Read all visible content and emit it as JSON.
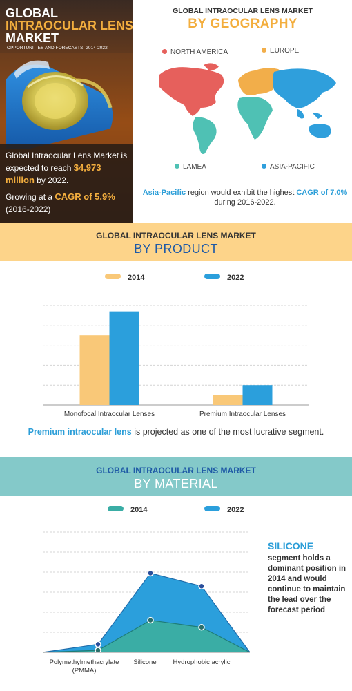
{
  "hero": {
    "title_line1": "GLOBAL",
    "title_line2": "INTRAOCULAR LENS",
    "title_line3": "MARKET",
    "subtitle": "OPPORTUNITIES AND FORECASTS, 2014-2022",
    "stat1_pre": "Global Intraocular Lens Market is expected to reach ",
    "stat1_value": "$4,973 million",
    "stat1_post": " by 2022.",
    "stat2_pre": "Growing at a ",
    "stat2_value": "CAGR of 5.9%",
    "stat2_post": " (2016-2022)",
    "colors": {
      "accent": "#f3ae3e"
    }
  },
  "geography": {
    "kicker": "GLOBAL INTRAOCULAR LENS MARKET",
    "title": "BY GEOGRAPHY",
    "regions": [
      {
        "label": "NORTH AMERICA",
        "color": "#e6605c"
      },
      {
        "label": "EUROPE",
        "color": "#f2ae4a"
      },
      {
        "label": "LAMEA",
        "color": "#4fc1b4"
      },
      {
        "label": "ASIA-PACIFIC",
        "color": "#2f9fdc"
      }
    ],
    "note_b1": "Asia-Pacific",
    "note_mid": " region would exhibit the highest ",
    "note_b2": "CAGR of 7.0%",
    "note_end": " during 2016-2022."
  },
  "product": {
    "kicker": "GLOBAL INTRAOCULAR LENS MARKET",
    "title": "BY PRODUCT",
    "legend": [
      {
        "label": "2014",
        "color": "#f9c878"
      },
      {
        "label": "2022",
        "color": "#2b9fdc"
      }
    ],
    "note_b": "Premium intraocular lens",
    "note_rest": " is projected as one of the most lucrative segment."
  },
  "material": {
    "kicker": "GLOBAL INTRAOCULAR LENS MARKET",
    "title": "BY MATERIAL",
    "legend": [
      {
        "label": "2014",
        "color": "#3aada5"
      },
      {
        "label": "2022",
        "color": "#2b9fdc"
      }
    ],
    "side_title": "SILICONE",
    "side_text": "segment holds a dominant position in 2014 and would continue to maintain the lead over the forecast period"
  },
  "chart_data": [
    {
      "type": "bar",
      "categories": [
        "Monofocal Intraocular Lenses",
        "Premium Intraocular Lenses"
      ],
      "series": [
        {
          "name": "2014",
          "values": [
            3.5,
            0.5
          ]
        },
        {
          "name": "2022",
          "values": [
            4.7,
            1.0
          ]
        }
      ],
      "ylim": [
        0,
        5
      ],
      "grid": true,
      "legend": "top-center",
      "colors": [
        "#f9c878",
        "#2b9fdc"
      ]
    },
    {
      "type": "area",
      "categories": [
        "Polymethylmethacrylate (PMMA)",
        "Silicone",
        "Hydrophobic acrylic",
        ""
      ],
      "series": [
        {
          "name": "2014",
          "values": [
            0.1,
            1.6,
            1.25,
            0
          ]
        },
        {
          "name": "2022",
          "values": [
            0.4,
            3.95,
            3.3,
            0
          ]
        }
      ],
      "ylim": [
        0,
        6
      ],
      "grid": true,
      "legend": "top-center",
      "colors": [
        "#3aada5",
        "#2b9fdc"
      ]
    }
  ]
}
